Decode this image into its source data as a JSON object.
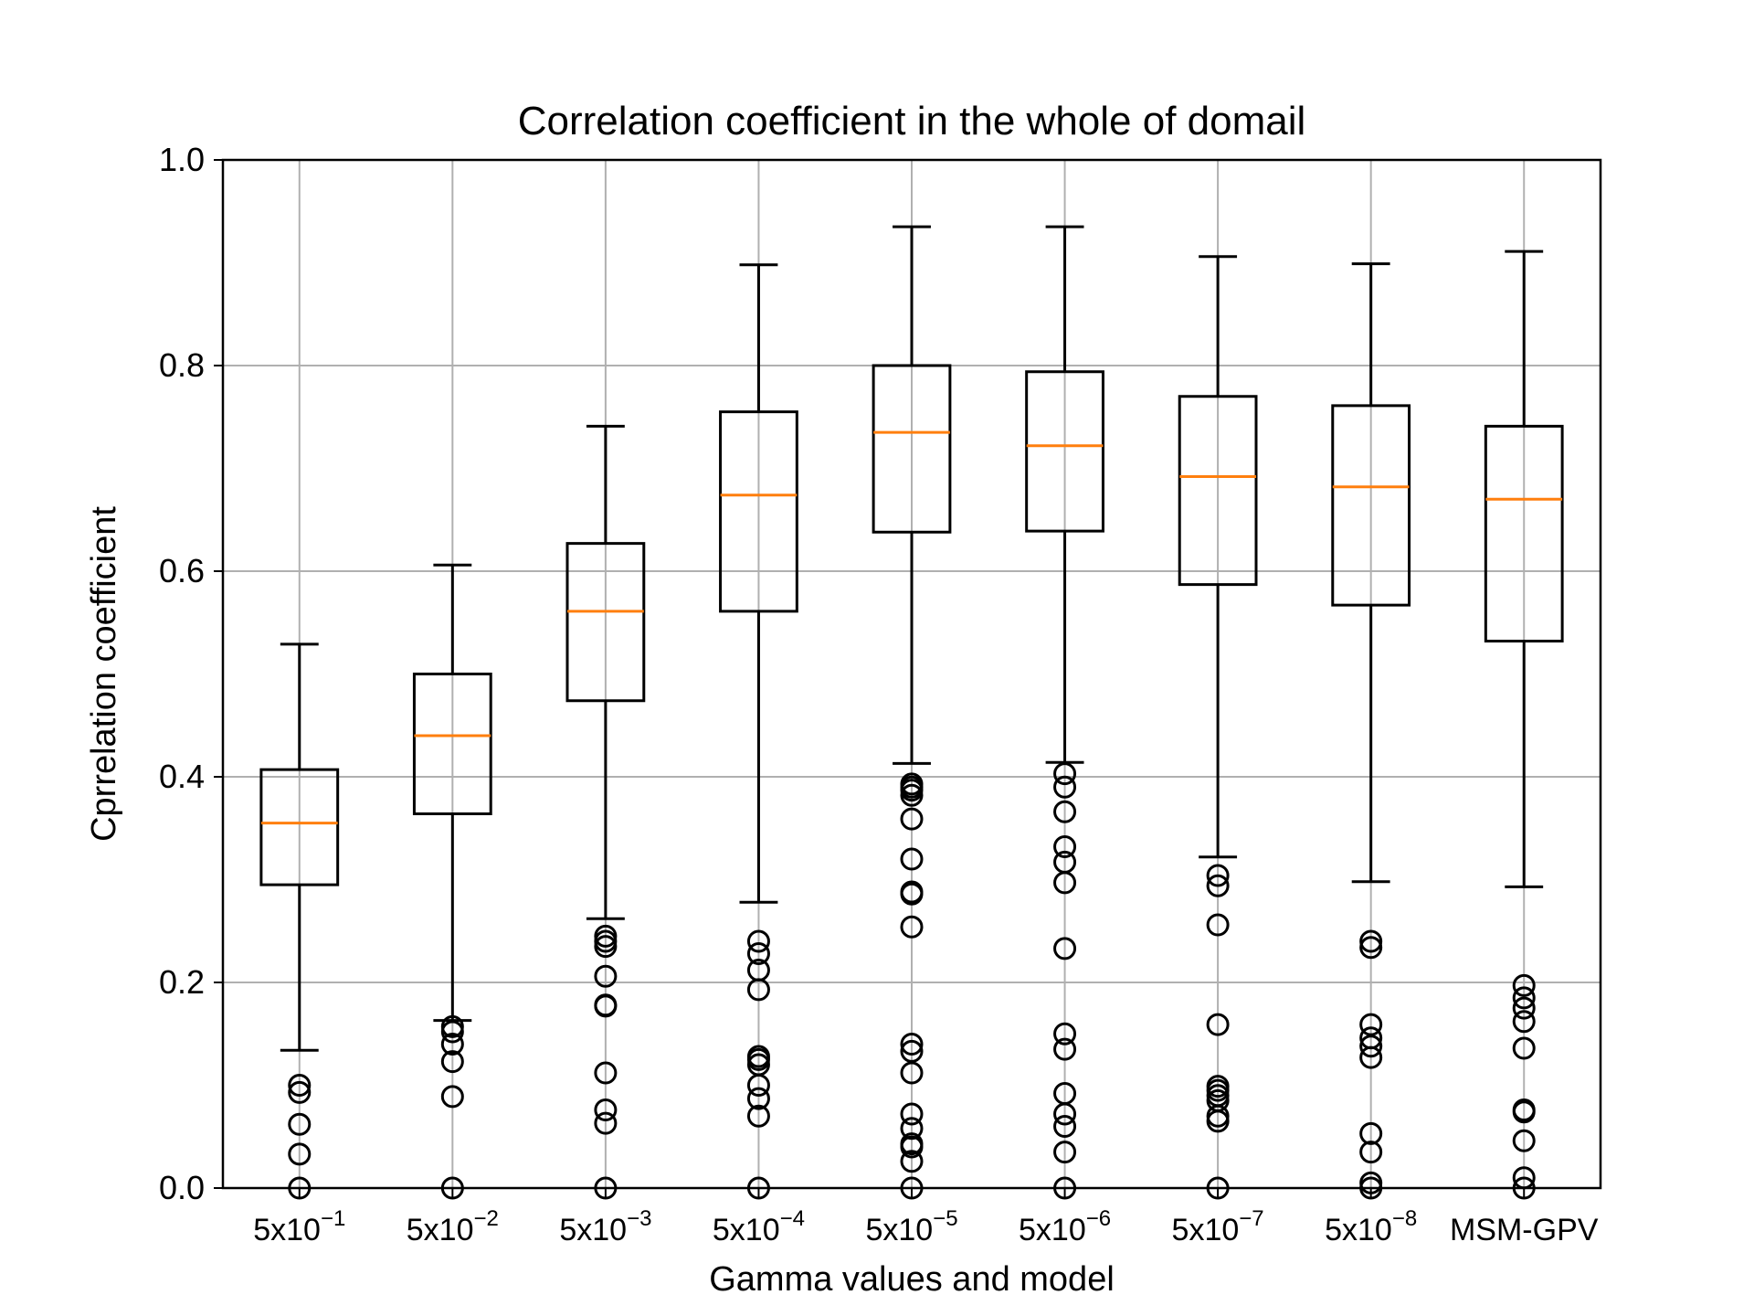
{
  "chart_data": {
    "type": "box",
    "title": "Correlation coefficient in the whole of domail",
    "xlabel": "Gamma values and model",
    "ylabel": "Cprrelation coefficient",
    "ylim": [
      0.0,
      1.0
    ],
    "yticks": [
      "0.0",
      "0.2",
      "0.4",
      "0.6",
      "0.8",
      "1.0"
    ],
    "grid": true,
    "colors": {
      "box": "#000000",
      "median": "#ff7f0e",
      "grid": "#b0b0b0"
    },
    "categories": [
      {
        "base": "5x10",
        "exp": "−1"
      },
      {
        "base": "5x10",
        "exp": "−2"
      },
      {
        "base": "5x10",
        "exp": "−3"
      },
      {
        "base": "5x10",
        "exp": "−4"
      },
      {
        "base": "5x10",
        "exp": "−5"
      },
      {
        "base": "5x10",
        "exp": "−6"
      },
      {
        "base": "5x10",
        "exp": "−7"
      },
      {
        "base": "5x10",
        "exp": "−8"
      },
      {
        "base": "MSM-GPV",
        "exp": ""
      }
    ],
    "boxes": [
      {
        "whislo": 0.134,
        "q1": 0.295,
        "med": 0.355,
        "q3": 0.407,
        "whishi": 0.529,
        "fliers": [
          0.0,
          0.033,
          0.062,
          0.093,
          0.1
        ]
      },
      {
        "whislo": 0.163,
        "q1": 0.364,
        "med": 0.44,
        "q3": 0.5,
        "whishi": 0.606,
        "fliers": [
          0.0,
          0.089,
          0.123,
          0.14,
          0.152,
          0.157
        ]
      },
      {
        "whislo": 0.262,
        "q1": 0.474,
        "med": 0.561,
        "q3": 0.627,
        "whishi": 0.741,
        "fliers": [
          0.0,
          0.063,
          0.076,
          0.112,
          0.177,
          0.178,
          0.206,
          0.235,
          0.24,
          0.245
        ]
      },
      {
        "whislo": 0.278,
        "q1": 0.561,
        "med": 0.674,
        "q3": 0.755,
        "whishi": 0.898,
        "fliers": [
          0.0,
          0.07,
          0.087,
          0.1,
          0.12,
          0.125,
          0.128,
          0.193,
          0.212,
          0.228,
          0.24
        ]
      },
      {
        "whislo": 0.413,
        "q1": 0.638,
        "med": 0.735,
        "q3": 0.8,
        "whishi": 0.935,
        "fliers": [
          0.0,
          0.026,
          0.04,
          0.043,
          0.058,
          0.072,
          0.112,
          0.133,
          0.14,
          0.254,
          0.286,
          0.288,
          0.32,
          0.359,
          0.382,
          0.387,
          0.39,
          0.393
        ]
      },
      {
        "whislo": 0.414,
        "q1": 0.639,
        "med": 0.722,
        "q3": 0.794,
        "whishi": 0.935,
        "fliers": [
          0.0,
          0.035,
          0.06,
          0.072,
          0.092,
          0.135,
          0.15,
          0.233,
          0.297,
          0.317,
          0.332,
          0.366,
          0.39,
          0.403
        ]
      },
      {
        "whislo": 0.322,
        "q1": 0.587,
        "med": 0.692,
        "q3": 0.77,
        "whishi": 0.906,
        "fliers": [
          0.0,
          0.065,
          0.07,
          0.085,
          0.09,
          0.095,
          0.099,
          0.159,
          0.256,
          0.294,
          0.304
        ]
      },
      {
        "whislo": 0.298,
        "q1": 0.567,
        "med": 0.682,
        "q3": 0.761,
        "whishi": 0.899,
        "fliers": [
          0.0,
          0.005,
          0.035,
          0.053,
          0.127,
          0.138,
          0.146,
          0.159,
          0.234,
          0.24
        ]
      },
      {
        "whislo": 0.293,
        "q1": 0.532,
        "med": 0.67,
        "q3": 0.741,
        "whishi": 0.911,
        "fliers": [
          0.0,
          0.01,
          0.046,
          0.074,
          0.076,
          0.136,
          0.162,
          0.175,
          0.185,
          0.197
        ]
      }
    ]
  }
}
